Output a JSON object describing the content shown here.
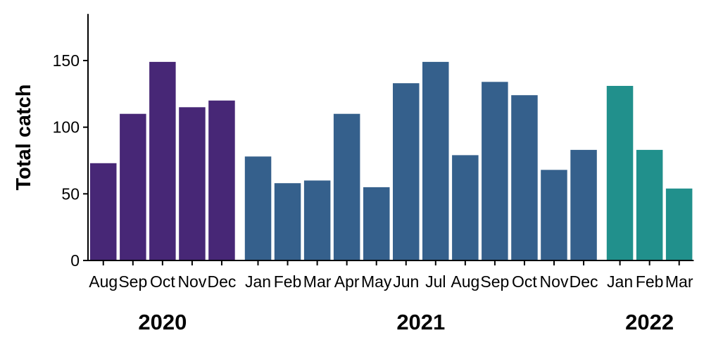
{
  "chart_data": {
    "type": "bar",
    "ylabel": "Total catch",
    "xlabel": "",
    "ylim": [
      0,
      185
    ],
    "yticks": [
      0,
      50,
      100,
      150
    ],
    "grid": false,
    "legend": "none",
    "groups": [
      {
        "name": "2020",
        "color": "#472776",
        "categories": [
          "Aug",
          "Sep",
          "Oct",
          "Nov",
          "Dec"
        ],
        "values": [
          73,
          110,
          149,
          115,
          120
        ]
      },
      {
        "name": "2021",
        "color": "#35608C",
        "categories": [
          "Jan",
          "Feb",
          "Mar",
          "Apr",
          "May",
          "Jun",
          "Jul",
          "Aug",
          "Sep",
          "Oct",
          "Nov",
          "Dec"
        ],
        "values": [
          78,
          58,
          60,
          110,
          55,
          133,
          149,
          79,
          134,
          124,
          68,
          83
        ]
      },
      {
        "name": "2022",
        "color": "#21908C",
        "categories": [
          "Jan",
          "Feb",
          "Mar"
        ],
        "values": [
          131,
          83,
          54
        ]
      }
    ]
  }
}
